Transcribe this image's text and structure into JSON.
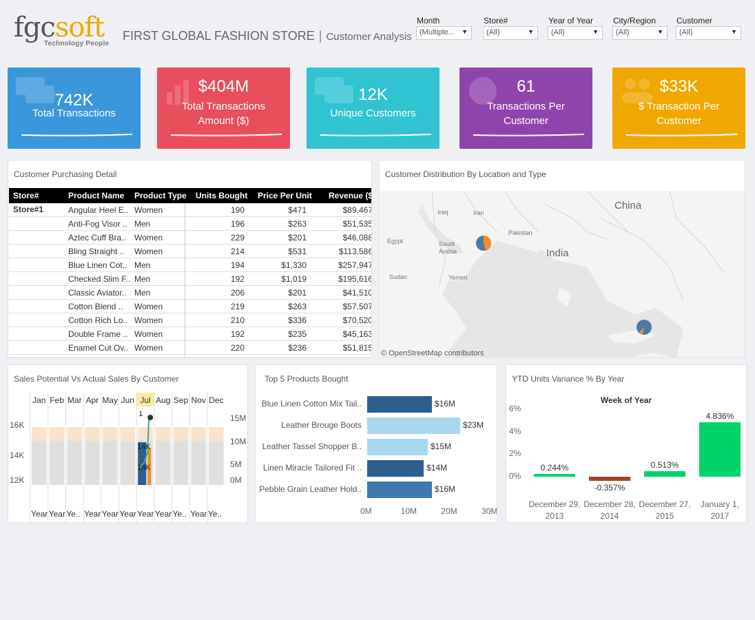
{
  "header": {
    "logo_main": "fgc",
    "logo_accent": "soft",
    "logo_tagline": "Technology People",
    "title": "FIRST GLOBAL FASHION STORE",
    "separator": "|",
    "subtitle": "Customer Analysis"
  },
  "filters": [
    {
      "label": "Month",
      "value": "(Multiple..."
    },
    {
      "label": "Store#",
      "value": "(All)"
    },
    {
      "label": "Year of Year",
      "value": "(All)"
    },
    {
      "label": "City/Region",
      "value": "(All)"
    },
    {
      "label": "Customer",
      "value": "(All)"
    }
  ],
  "kpis": [
    {
      "value": "742K",
      "label": "Total Transactions",
      "color": "#3a97dc"
    },
    {
      "value": "$404M",
      "label": "Total Transactions Amount ($)",
      "color": "#e94e5c"
    },
    {
      "value": "12K",
      "label": "Unique Customers",
      "color": "#31c3d2"
    },
    {
      "value": "61",
      "label": "Transactions Per Customer",
      "color": "#8e44ad"
    },
    {
      "value": "$33K",
      "label": "$ Transaction Per Customer",
      "color": "#f0a800"
    }
  ],
  "purchasing": {
    "title": "Customer Purchasing Detail",
    "columns": [
      "Store#",
      "Product Name",
      "Product Type",
      "Units Bought",
      "Price Per Unit",
      "Revenue ($"
    ],
    "store": "Store#1",
    "rows": [
      [
        "Angular Heel E..",
        "Women",
        "190",
        "$471",
        "$89,467"
      ],
      [
        "Anti-Fog Visor ..",
        "Men",
        "196",
        "$263",
        "$51,535"
      ],
      [
        "Aztec Cuff Bra..",
        "Women",
        "229",
        "$201",
        "$46,088"
      ],
      [
        "Bling Straight ..",
        "Women",
        "214",
        "$531",
        "$113,586"
      ],
      [
        "Blue Linen Cot..",
        "Men",
        "194",
        "$1,330",
        "$257,947"
      ],
      [
        "Checked Slim F..",
        "Men",
        "192",
        "$1,019",
        "$195,616"
      ],
      [
        "Classic Aviator..",
        "Men",
        "206",
        "$201",
        "$41,510"
      ],
      [
        "Cotton Blend ..",
        "Women",
        "219",
        "$263",
        "$57,507"
      ],
      [
        "Cotton Rich Lo..",
        "Women",
        "210",
        "$336",
        "$70,520"
      ],
      [
        "Double Frame ..",
        "Women",
        "192",
        "$235",
        "$45,163"
      ],
      [
        "Enamel Cut Ov..",
        "Women",
        "220",
        "$236",
        "$51,815"
      ]
    ]
  },
  "map": {
    "title": "Customer Distribution By Location and Type",
    "labels": [
      "China",
      "Iraq",
      "Iran",
      "Egypt",
      "Saudi Arabia",
      "Pakistan",
      "India",
      "Sudan",
      "Yemen"
    ],
    "attribution": "© OpenStreetMap contributors",
    "marker_colors": [
      "#4e79a7",
      "#f28e2b"
    ]
  },
  "sales_potential": {
    "title": "Sales Potential Vs Actual Sales By Customer",
    "months": [
      "Jan",
      "Feb",
      "Mar",
      "Apr",
      "May",
      "Jun",
      "Jul",
      "Aug",
      "Sep",
      "Nov",
      "Dec"
    ],
    "highlight_month": "Jul",
    "left_axis": [
      "16K",
      "14K",
      "12K"
    ],
    "right_axis": [
      "15M",
      "10M",
      "5M",
      "0M"
    ],
    "bottom_labels": [
      "Year",
      "Year",
      "Ye..",
      "Year",
      "Year",
      "Year",
      "Year",
      "Year",
      "Ye..",
      "Year",
      "Ye.."
    ],
    "overlay_labels": [
      "14K",
      "14K",
      "1"
    ]
  },
  "top_products": {
    "title": "Top 5 Products Bought",
    "chart_data": {
      "type": "bar",
      "categories": [
        "Blue Linen Cotton Mix Tail..",
        "Leather Brouge Boots",
        "Leather Tassel Shopper B..",
        "Linen Miracle Tailored Fit ..",
        "Pebble Grain Leather Hold.."
      ],
      "values": [
        16,
        23,
        15,
        14,
        16
      ],
      "value_labels": [
        "$16M",
        "$23M",
        "$15M",
        "$14M",
        "$16M"
      ],
      "colors": [
        "#2c5f8e",
        "#a8d8ee",
        "#a8d8ee",
        "#2c5f8e",
        "#3f78aa"
      ],
      "x_ticks": [
        "0M",
        "10M",
        "20M",
        "30M"
      ],
      "xlim": [
        0,
        30
      ],
      "title": "Top 5 Products Bought"
    }
  },
  "ytd_variance": {
    "title": "YTD Units Variance % By Year",
    "chart_data": {
      "type": "bar",
      "title": "Week of Year",
      "categories": [
        "December 29, 2013",
        "December 28, 2014",
        "December 27, 2015",
        "January 1, 2017"
      ],
      "values": [
        0.244,
        -0.357,
        0.513,
        4.836
      ],
      "value_labels": [
        "0.244%",
        "-0.357%",
        "0.513%",
        "4.836%"
      ],
      "colors": [
        "#00d26a",
        "#a0432a",
        "#00d26a",
        "#00d26a"
      ],
      "y_ticks": [
        "6%",
        "4%",
        "2%",
        "0%"
      ],
      "ylim": [
        -0.6,
        6
      ]
    }
  }
}
